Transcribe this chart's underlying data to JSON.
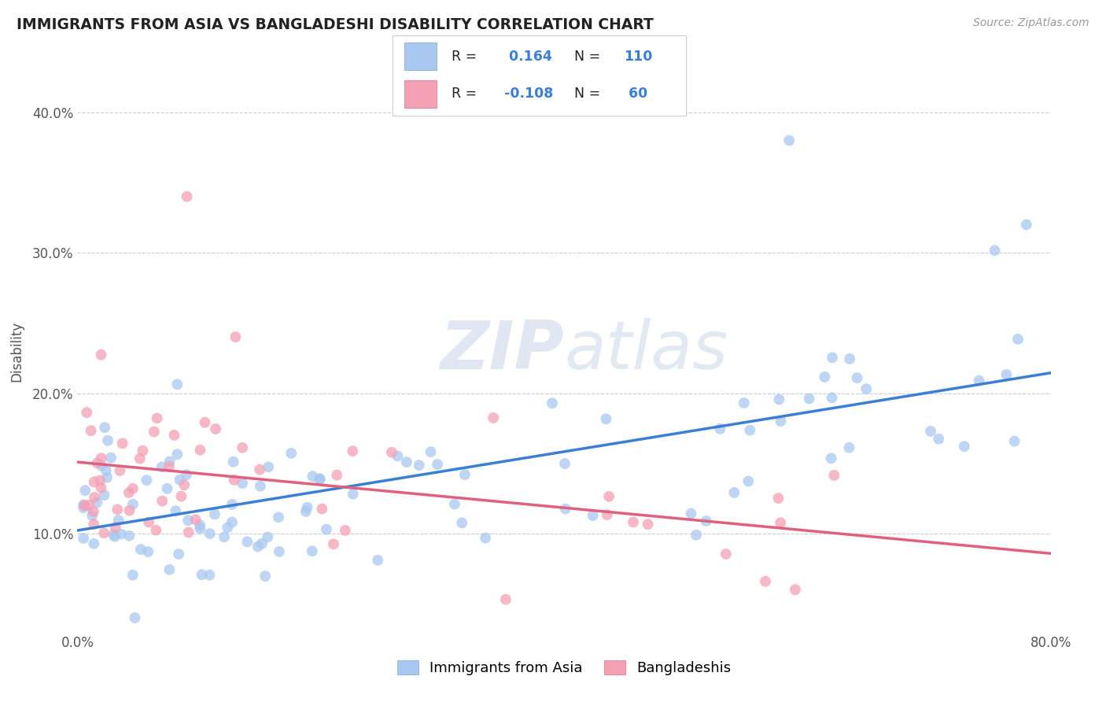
{
  "title": "IMMIGRANTS FROM ASIA VS BANGLADESHI DISABILITY CORRELATION CHART",
  "source_text": "Source: ZipAtlas.com",
  "ylabel": "Disability",
  "xlim": [
    0.0,
    0.8
  ],
  "ylim": [
    0.03,
    0.43
  ],
  "yticks": [
    0.1,
    0.2,
    0.3,
    0.4
  ],
  "ytick_labels": [
    "10.0%",
    "20.0%",
    "30.0%",
    "40.0%"
  ],
  "legend_blue_r": " 0.164",
  "legend_blue_n": "110",
  "legend_pink_r": "-0.108",
  "legend_pink_n": "60",
  "legend_blue_label": "Immigrants from Asia",
  "legend_pink_label": "Bangladeshis",
  "blue_color": "#a8c8f0",
  "pink_color": "#f4a0b5",
  "blue_line_color": "#3a7fd5",
  "pink_line_color": "#e06080",
  "r_n_color": "#3a7fd5",
  "label_color": "#555555",
  "grid_color": "#cccccc",
  "watermark_color": "#d0d8e8",
  "watermark_text_color": "#c0c8d8"
}
